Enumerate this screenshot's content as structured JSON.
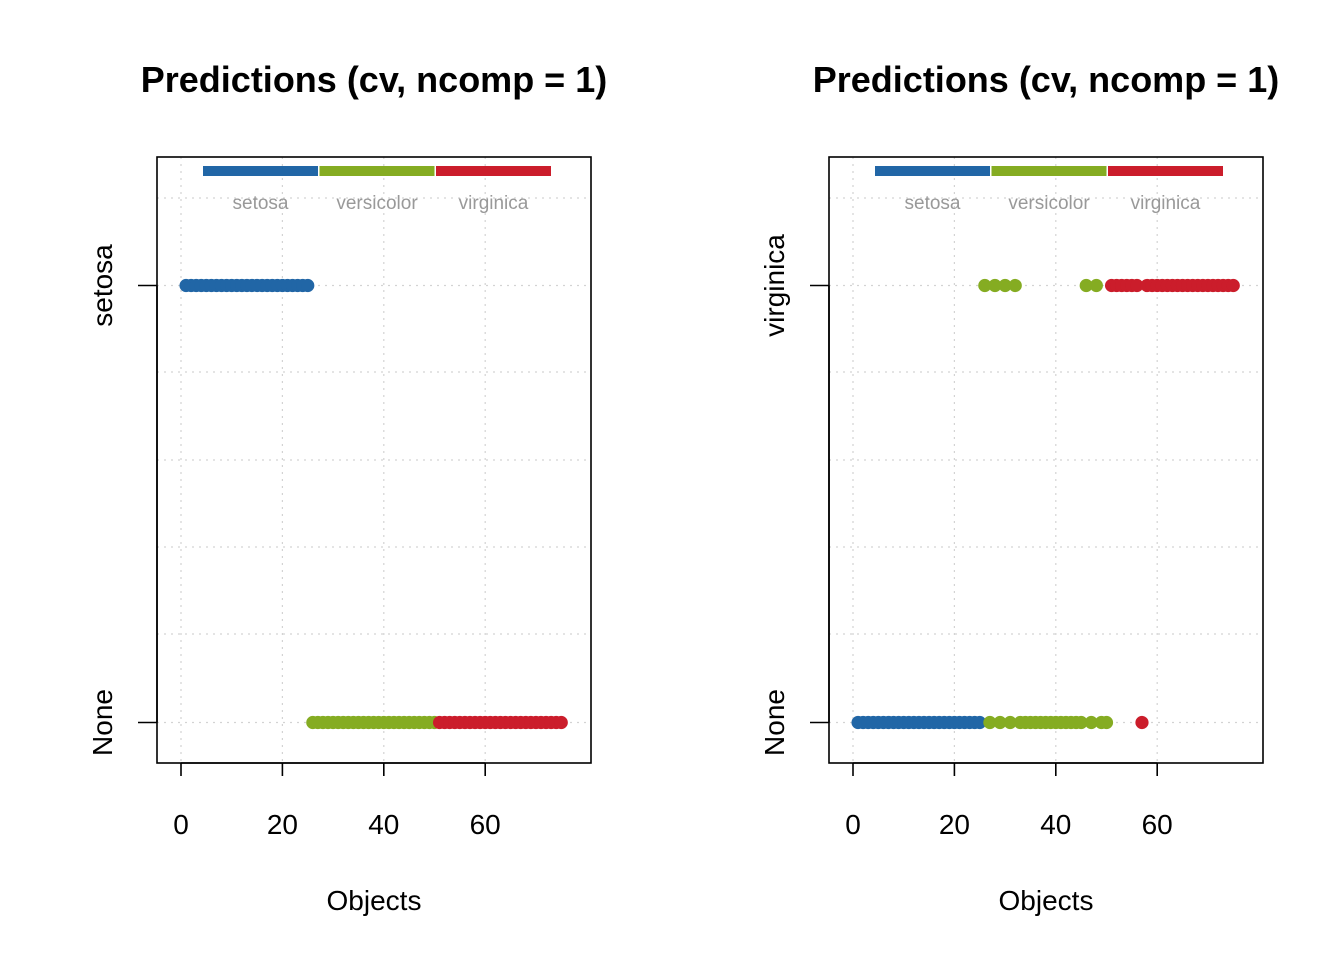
{
  "colors": {
    "setosa": "#2166a6",
    "versicolor": "#85ac22",
    "virginica": "#cb1d2b"
  },
  "chart_data": [
    {
      "type": "scatter",
      "title": "Predictions (cv, ncomp = 1)",
      "xlabel": "Objects",
      "ylabel": "",
      "xlim": [
        0,
        75
      ],
      "xticks": [
        0,
        20,
        40,
        60
      ],
      "ycategories": [
        "None",
        "setosa"
      ],
      "legend": {
        "placement": "top",
        "entries": [
          "setosa",
          "versicolor",
          "virginica"
        ]
      },
      "grid": true,
      "series": [
        {
          "class": "setosa",
          "x_from": 1,
          "x_to": 25,
          "y": "setosa"
        },
        {
          "class": "versicolor",
          "x_from": 26,
          "x_to": 50,
          "y": "None"
        },
        {
          "class": "virginica",
          "x_from": 51,
          "x_to": 75,
          "y": "None"
        }
      ]
    },
    {
      "type": "scatter",
      "title": "Predictions (cv, ncomp = 1)",
      "xlabel": "Objects",
      "ylabel": "",
      "xlim": [
        0,
        75
      ],
      "xticks": [
        0,
        20,
        40,
        60
      ],
      "ycategories": [
        "None",
        "virginica"
      ],
      "legend": {
        "placement": "top",
        "entries": [
          "setosa",
          "versicolor",
          "virginica"
        ]
      },
      "grid": true,
      "points": [
        {
          "class": "setosa",
          "x": [
            1,
            2,
            3,
            4,
            5,
            6,
            7,
            8,
            9,
            10,
            11,
            12,
            13,
            14,
            15,
            16,
            17,
            18,
            19,
            20,
            21,
            22,
            23,
            24,
            25
          ],
          "y": "None"
        },
        {
          "class": "versicolor",
          "x": [
            26,
            28,
            30,
            32
          ],
          "y": "virginica"
        },
        {
          "class": "versicolor",
          "x": [
            27,
            29,
            31,
            33,
            34,
            35,
            36,
            37,
            38,
            39,
            40,
            41,
            42,
            43,
            44,
            45,
            47,
            49,
            50
          ],
          "y": "None"
        },
        {
          "class": "versicolor",
          "x": [
            46,
            48
          ],
          "y": "virginica"
        },
        {
          "class": "virginica",
          "x": [
            51,
            52,
            53,
            54,
            55,
            56,
            58,
            59,
            60,
            61,
            62,
            63,
            64,
            65,
            66,
            67,
            68,
            69,
            70,
            71,
            72,
            73,
            74,
            75
          ],
          "y": "virginica"
        },
        {
          "class": "virginica",
          "x": [
            57
          ],
          "y": "None"
        }
      ]
    }
  ]
}
